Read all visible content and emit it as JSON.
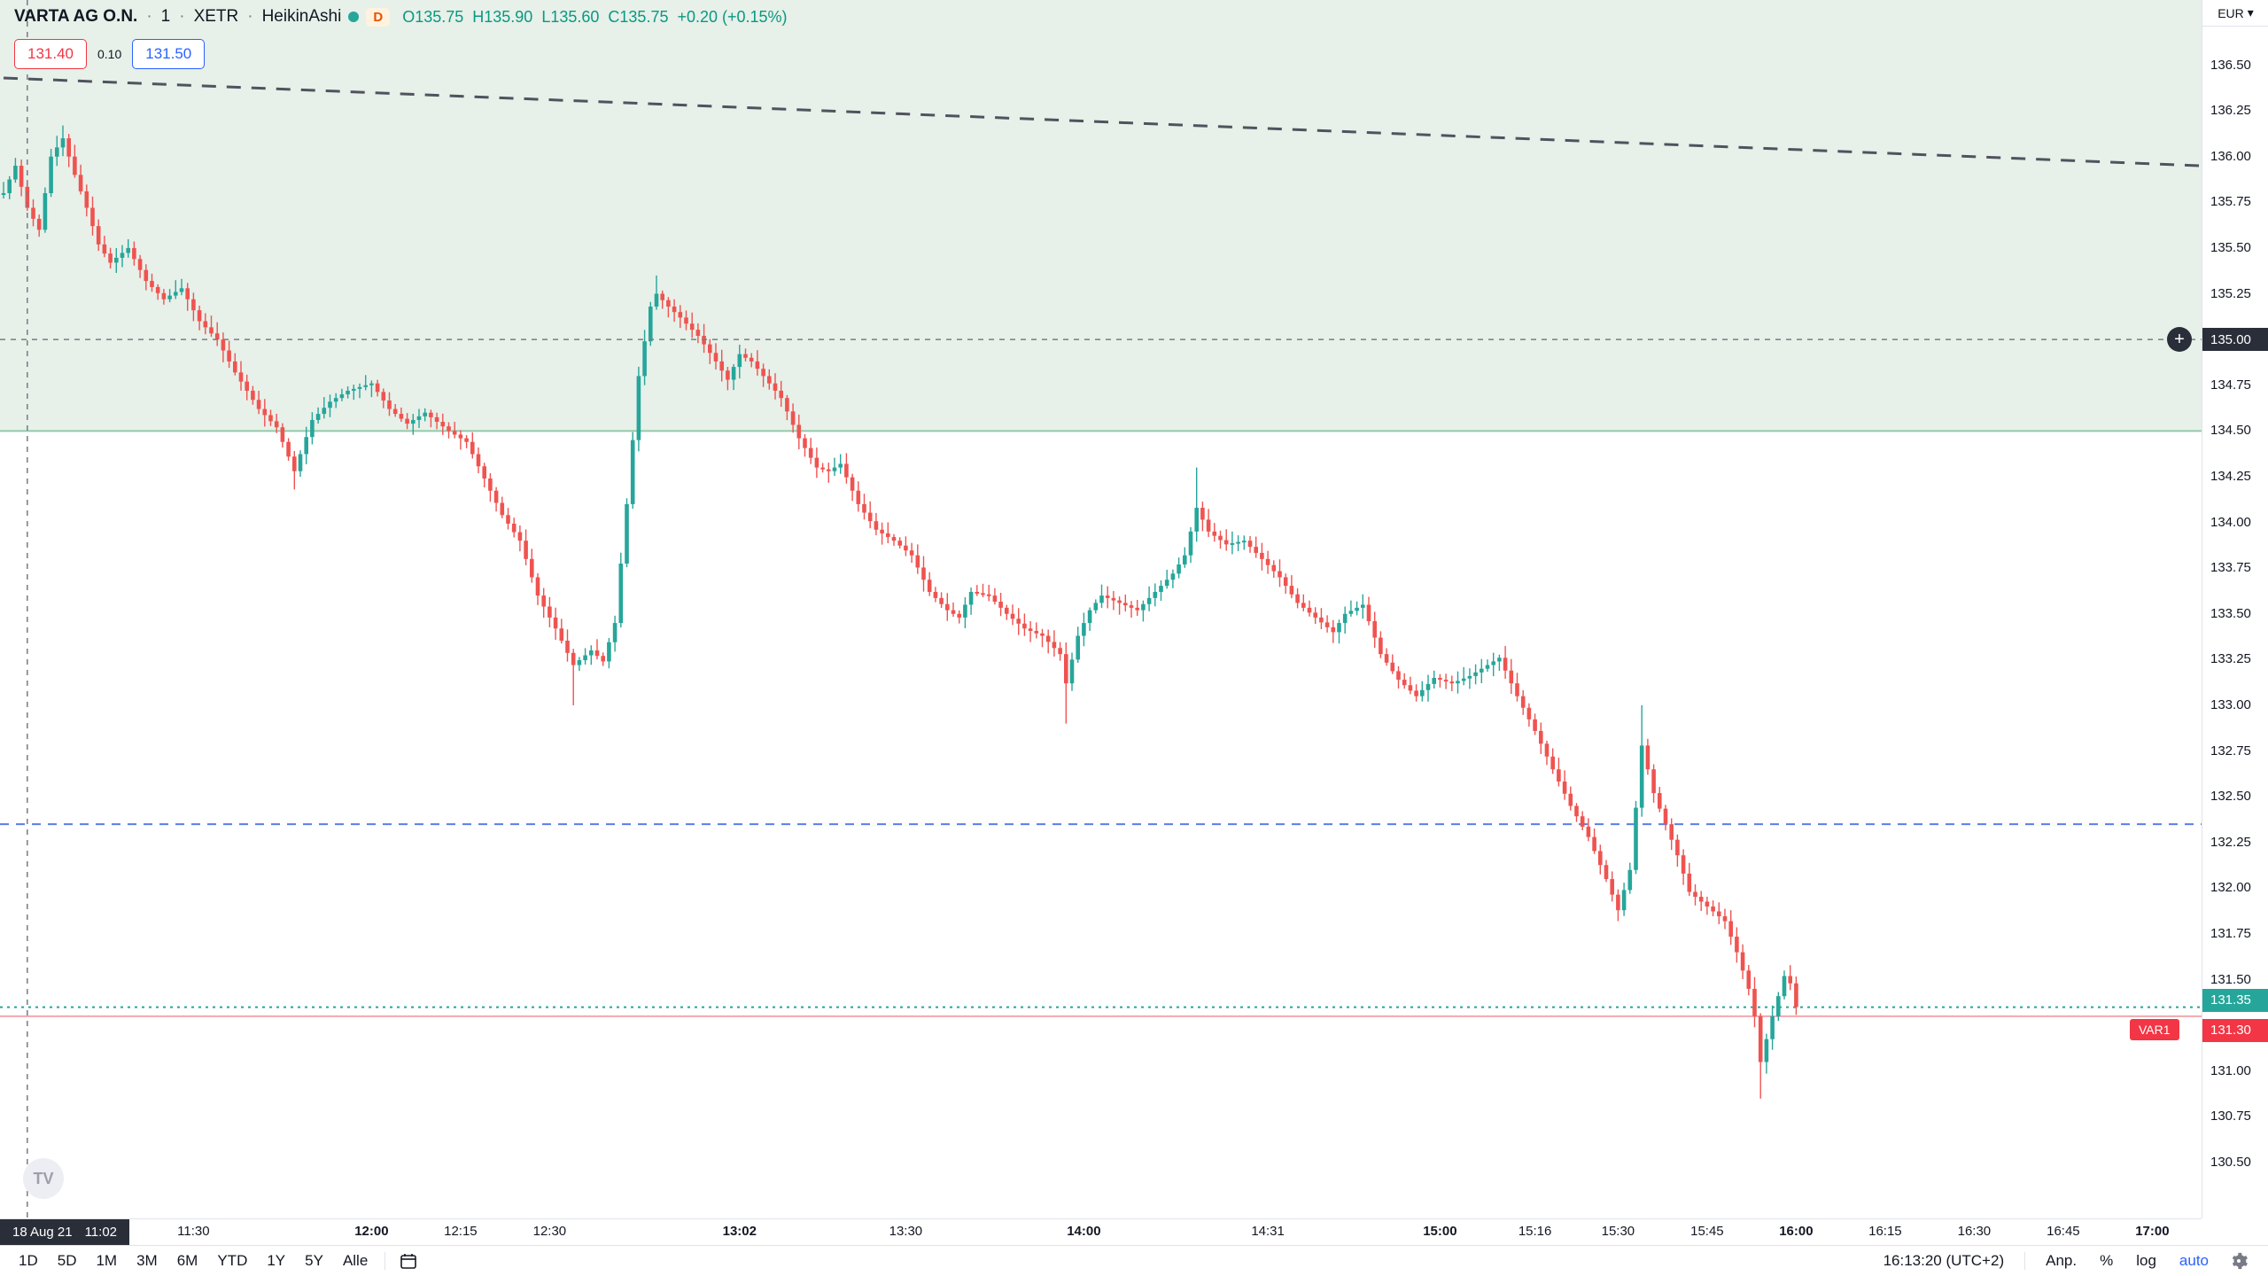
{
  "legend": {
    "symbol": "VARTA AG O.N.",
    "separator": "·",
    "interval": "1",
    "exchange": "XETR",
    "chart_type": "HeikinAshi",
    "d_badge": "D",
    "ohlc": {
      "o_label": "O",
      "o": "135.75",
      "h_label": "H",
      "h": "135.90",
      "l_label": "L",
      "l": "135.60",
      "c_label": "C",
      "c": "135.75",
      "change": "+0.20 (+0.15%)"
    }
  },
  "trade_widget": {
    "sell_price": "131.40",
    "spread": "0.10",
    "buy_price": "131.50"
  },
  "watermark_text": "TV",
  "axis_labels": {
    "currency": "EUR",
    "currency_caret": "▾",
    "crosshair_price": "135.00",
    "last_price": "131.35",
    "var1_price": "131.30",
    "var1_tag": "VAR1",
    "plus_glyph": "+"
  },
  "crosshair_label": {
    "date": "18 Aug 21",
    "time": "11:02"
  },
  "toolbar": {
    "ranges": [
      "1D",
      "5D",
      "1M",
      "3M",
      "6M",
      "YTD",
      "1Y",
      "5Y",
      "Alle"
    ],
    "clock": "16:13:20 (UTC+2)",
    "adjust_label": "Anp.",
    "percent_label": "%",
    "log_label": "log",
    "auto_label": "auto"
  },
  "chart_data": {
    "type": "candlestick",
    "subtype": "heikin-ashi",
    "symbol": "VARTA AG O.N.",
    "exchange": "XETR",
    "interval_minutes": 1,
    "session_date": "18 Aug 21",
    "colors": {
      "up": "#26a69a",
      "down": "#ef5350",
      "band": "#e7f0e9",
      "trend": "#50535e",
      "blue_level": "#5b7de8",
      "last_line": "#26a69a",
      "var1_line": "#f3a7ab",
      "band_edge": "#94c9ab",
      "crosshair": "#787b86"
    },
    "price_axis": {
      "currency": "EUR",
      "top_price": 136.855,
      "bottom_price": 130.195,
      "tick_step": 0.25,
      "ticks": [
        "136.50",
        "136.25",
        "136.00",
        "135.75",
        "135.50",
        "135.25",
        "135.00",
        "134.75",
        "134.50",
        "134.25",
        "134.00",
        "133.75",
        "133.50",
        "133.25",
        "133.00",
        "132.75",
        "132.50",
        "132.25",
        "132.00",
        "131.75",
        "131.50",
        "131.25",
        "131.00",
        "130.75",
        "130.50"
      ]
    },
    "time_axis": {
      "start_time": "10:58",
      "labels": [
        {
          "t": "11:30",
          "m": 32,
          "b": false
        },
        {
          "t": "12:00",
          "m": 62,
          "b": true
        },
        {
          "t": "12:15",
          "m": 77,
          "b": false
        },
        {
          "t": "12:30",
          "m": 92,
          "b": false
        },
        {
          "t": "13:02",
          "m": 124,
          "b": true
        },
        {
          "t": "13:30",
          "m": 152,
          "b": false
        },
        {
          "t": "14:00",
          "m": 182,
          "b": true
        },
        {
          "t": "14:31",
          "m": 213,
          "b": false
        },
        {
          "t": "15:00",
          "m": 242,
          "b": true
        },
        {
          "t": "15:16",
          "m": 258,
          "b": false
        },
        {
          "t": "15:30",
          "m": 272,
          "b": false
        },
        {
          "t": "15:45",
          "m": 287,
          "b": false
        },
        {
          "t": "16:00",
          "m": 302,
          "b": true
        },
        {
          "t": "16:15",
          "m": 317,
          "b": false
        },
        {
          "t": "16:30",
          "m": 332,
          "b": false
        },
        {
          "t": "16:45",
          "m": 347,
          "b": false
        },
        {
          "t": "17:00",
          "m": 362,
          "b": true
        }
      ]
    },
    "background_band": {
      "top_price": 136.855,
      "bottom_price": 134.5
    },
    "levels": [
      {
        "name": "band-edge-line",
        "price": 134.5,
        "style": "solid",
        "colorKey": "band_edge",
        "width": 2
      },
      {
        "name": "blue-dashed-line",
        "price": 132.35,
        "style": "dashed",
        "colorKey": "blue_level",
        "width": 2
      },
      {
        "name": "last-price-line",
        "price": 131.35,
        "style": "dotted",
        "colorKey": "last_line",
        "width": 2
      },
      {
        "name": "var1-level-line",
        "price": 131.3,
        "style": "solid",
        "colorKey": "var1_line",
        "width": 2
      }
    ],
    "trend_line": {
      "start_minute": 0,
      "start_price": 136.43,
      "end_minute": 370,
      "end_price": 135.95,
      "style": "dashed",
      "width": 3
    },
    "crosshair": {
      "minute": 4,
      "price": 135.0
    },
    "last_minute": 302,
    "last_close": 131.35,
    "waypoints": [
      [
        0,
        135.8
      ],
      [
        2,
        135.95
      ],
      [
        4,
        135.72
      ],
      [
        6,
        135.6
      ],
      [
        8,
        136.0
      ],
      [
        10,
        136.1
      ],
      [
        12,
        135.9
      ],
      [
        14,
        135.72
      ],
      [
        16,
        135.52
      ],
      [
        18,
        135.42
      ],
      [
        21,
        135.5
      ],
      [
        24,
        135.32
      ],
      [
        27,
        135.22
      ],
      [
        30,
        135.28
      ],
      [
        33,
        135.1
      ],
      [
        36,
        135.0
      ],
      [
        39,
        134.82
      ],
      [
        43,
        134.62
      ],
      [
        46,
        134.52
      ],
      [
        49,
        134.28
      ],
      [
        52,
        134.56
      ],
      [
        55,
        134.66
      ],
      [
        58,
        134.72
      ],
      [
        62,
        134.76
      ],
      [
        65,
        134.62
      ],
      [
        68,
        134.54
      ],
      [
        71,
        134.6
      ],
      [
        75,
        134.5
      ],
      [
        78,
        134.44
      ],
      [
        81,
        134.24
      ],
      [
        84,
        134.04
      ],
      [
        87,
        133.9
      ],
      [
        90,
        133.6
      ],
      [
        93,
        133.42
      ],
      [
        96,
        133.22
      ],
      [
        99,
        133.3
      ],
      [
        101,
        133.24
      ],
      [
        103,
        133.45
      ],
      [
        105,
        134.1
      ],
      [
        107,
        134.8
      ],
      [
        109,
        135.18
      ],
      [
        110,
        135.25
      ],
      [
        112,
        135.18
      ],
      [
        114,
        135.12
      ],
      [
        117,
        135.02
      ],
      [
        120,
        134.88
      ],
      [
        122,
        134.78
      ],
      [
        124,
        134.92
      ],
      [
        126,
        134.88
      ],
      [
        128,
        134.8
      ],
      [
        131,
        134.68
      ],
      [
        134,
        134.46
      ],
      [
        137,
        134.3
      ],
      [
        139,
        134.28
      ],
      [
        141,
        134.32
      ],
      [
        144,
        134.1
      ],
      [
        147,
        133.96
      ],
      [
        150,
        133.9
      ],
      [
        153,
        133.82
      ],
      [
        156,
        133.62
      ],
      [
        159,
        133.52
      ],
      [
        161,
        133.48
      ],
      [
        163,
        133.62
      ],
      [
        166,
        133.6
      ],
      [
        169,
        133.5
      ],
      [
        172,
        133.42
      ],
      [
        175,
        133.38
      ],
      [
        178,
        133.28
      ],
      [
        179,
        133.12
      ],
      [
        181,
        133.38
      ],
      [
        183,
        133.52
      ],
      [
        185,
        133.6
      ],
      [
        188,
        133.56
      ],
      [
        191,
        133.52
      ],
      [
        194,
        133.62
      ],
      [
        197,
        133.72
      ],
      [
        199,
        133.82
      ],
      [
        201,
        134.08
      ],
      [
        203,
        133.95
      ],
      [
        206,
        133.88
      ],
      [
        209,
        133.9
      ],
      [
        212,
        133.8
      ],
      [
        215,
        133.7
      ],
      [
        218,
        133.56
      ],
      [
        221,
        133.48
      ],
      [
        224,
        133.4
      ],
      [
        226,
        133.5
      ],
      [
        229,
        133.55
      ],
      [
        232,
        133.28
      ],
      [
        235,
        133.14
      ],
      [
        238,
        133.05
      ],
      [
        241,
        133.15
      ],
      [
        244,
        133.12
      ],
      [
        247,
        133.16
      ],
      [
        250,
        133.22
      ],
      [
        252,
        133.26
      ],
      [
        255,
        133.05
      ],
      [
        258,
        132.86
      ],
      [
        261,
        132.65
      ],
      [
        264,
        132.45
      ],
      [
        267,
        132.28
      ],
      [
        270,
        132.05
      ],
      [
        272,
        131.88
      ],
      [
        274,
        132.1
      ],
      [
        276,
        132.78
      ],
      [
        278,
        132.52
      ],
      [
        280,
        132.35
      ],
      [
        282,
        132.18
      ],
      [
        284,
        131.98
      ],
      [
        287,
        131.9
      ],
      [
        290,
        131.82
      ],
      [
        292,
        131.65
      ],
      [
        294,
        131.45
      ],
      [
        295,
        131.3
      ],
      [
        296,
        131.05
      ],
      [
        298,
        131.3
      ],
      [
        300,
        131.52
      ],
      [
        301,
        131.48
      ],
      [
        302,
        131.35
      ]
    ],
    "wick_overrides": [
      [
        10,
        "h",
        136.17
      ],
      [
        49,
        "l",
        134.18
      ],
      [
        96,
        "l",
        133.0
      ],
      [
        110,
        "h",
        135.35
      ],
      [
        179,
        "l",
        132.9
      ],
      [
        201,
        "h",
        134.3
      ],
      [
        276,
        "h",
        133.0
      ],
      [
        296,
        "l",
        130.85
      ]
    ]
  }
}
